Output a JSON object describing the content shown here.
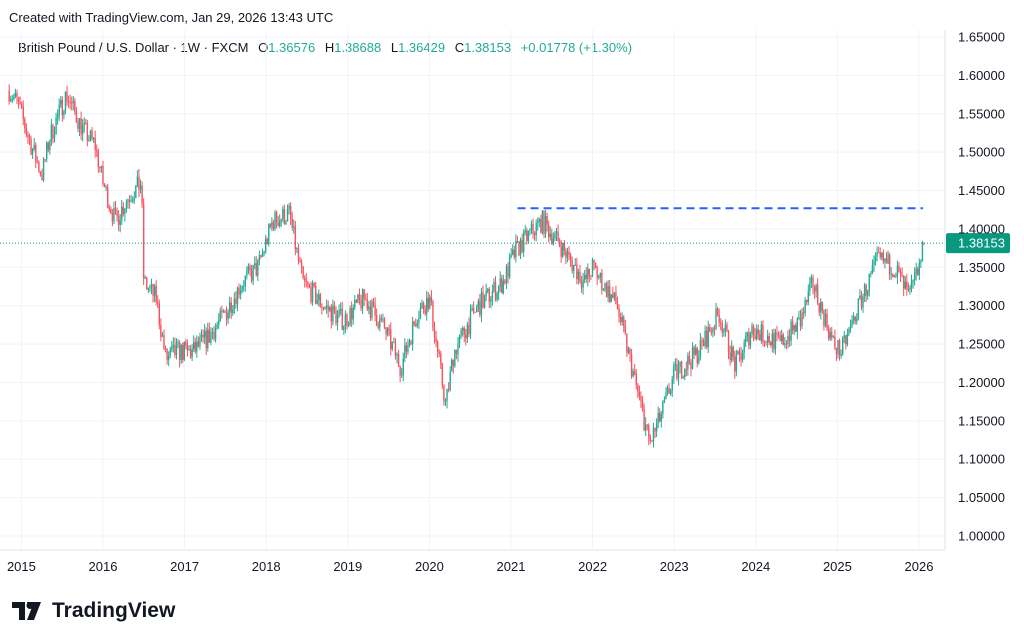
{
  "header": {
    "credit": "Created with TradingView.com, Jan 29, 2026 13:43 UTC"
  },
  "legend": {
    "symbol": "British Pound / U.S. Dollar · 1W · FXCM",
    "o_label": "O",
    "o": "1.36576",
    "h_label": "H",
    "h": "1.38688",
    "l_label": "L",
    "l": "1.36429",
    "c_label": "C",
    "c": "1.38153",
    "change": "+0.01778 (+1.30%)"
  },
  "logo": {
    "text": "TradingView"
  },
  "colors": {
    "up": "#22ab94",
    "down": "#f7525f",
    "level": "#2962ff",
    "price_tag": "#089981"
  },
  "chart_data": {
    "type": "candlestick",
    "title": "British Pound / U.S. Dollar · 1W · FXCM",
    "interval": "1W",
    "ylim": [
      0.98,
      1.67
    ],
    "y_ticks": [
      "1.65000",
      "1.60000",
      "1.55000",
      "1.50000",
      "1.45000",
      "1.40000",
      "1.35000",
      "1.30000",
      "1.25000",
      "1.20000",
      "1.15000",
      "1.10000",
      "1.05000",
      "1.00000"
    ],
    "x_ticks": [
      "2015",
      "2016",
      "2017",
      "2018",
      "2019",
      "2020",
      "2021",
      "2022",
      "2023",
      "2024",
      "2025",
      "2026"
    ],
    "last_price": "1.38153",
    "horizontal_level": {
      "price": 1.427,
      "from": 2021.08,
      "to": 2026.05,
      "style": "dashed"
    },
    "approx_close_path": [
      [
        2014.85,
        1.58
      ],
      [
        2014.95,
        1.565
      ],
      [
        2015.1,
        1.515
      ],
      [
        2015.25,
        1.47
      ],
      [
        2015.35,
        1.52
      ],
      [
        2015.55,
        1.575
      ],
      [
        2015.75,
        1.53
      ],
      [
        2015.9,
        1.51
      ],
      [
        2016.0,
        1.46
      ],
      [
        2016.15,
        1.41
      ],
      [
        2016.3,
        1.44
      ],
      [
        2016.47,
        1.46
      ],
      [
        2016.5,
        1.33
      ],
      [
        2016.65,
        1.31
      ],
      [
        2016.77,
        1.23
      ],
      [
        2016.9,
        1.24
      ],
      [
        2017.1,
        1.24
      ],
      [
        2017.3,
        1.26
      ],
      [
        2017.5,
        1.29
      ],
      [
        2017.7,
        1.33
      ],
      [
        2017.9,
        1.35
      ],
      [
        2018.08,
        1.41
      ],
      [
        2018.28,
        1.42
      ],
      [
        2018.45,
        1.33
      ],
      [
        2018.7,
        1.3
      ],
      [
        2018.95,
        1.28
      ],
      [
        2019.2,
        1.31
      ],
      [
        2019.45,
        1.27
      ],
      [
        2019.65,
        1.22
      ],
      [
        2019.85,
        1.29
      ],
      [
        2020.0,
        1.31
      ],
      [
        2020.2,
        1.17
      ],
      [
        2020.3,
        1.24
      ],
      [
        2020.6,
        1.3
      ],
      [
        2020.9,
        1.33
      ],
      [
        2021.05,
        1.37
      ],
      [
        2021.2,
        1.39
      ],
      [
        2021.38,
        1.41
      ],
      [
        2021.6,
        1.38
      ],
      [
        2021.9,
        1.33
      ],
      [
        2022.0,
        1.35
      ],
      [
        2022.3,
        1.3
      ],
      [
        2022.5,
        1.21
      ],
      [
        2022.7,
        1.12
      ],
      [
        2022.85,
        1.16
      ],
      [
        2023.0,
        1.21
      ],
      [
        2023.3,
        1.24
      ],
      [
        2023.55,
        1.29
      ],
      [
        2023.75,
        1.22
      ],
      [
        2023.95,
        1.27
      ],
      [
        2024.3,
        1.25
      ],
      [
        2024.55,
        1.28
      ],
      [
        2024.7,
        1.33
      ],
      [
        2024.95,
        1.25
      ],
      [
        2025.05,
        1.24
      ],
      [
        2025.3,
        1.31
      ],
      [
        2025.5,
        1.36
      ],
      [
        2025.7,
        1.35
      ],
      [
        2025.88,
        1.31
      ],
      [
        2026.0,
        1.35
      ],
      [
        2026.07,
        1.3815
      ]
    ]
  }
}
